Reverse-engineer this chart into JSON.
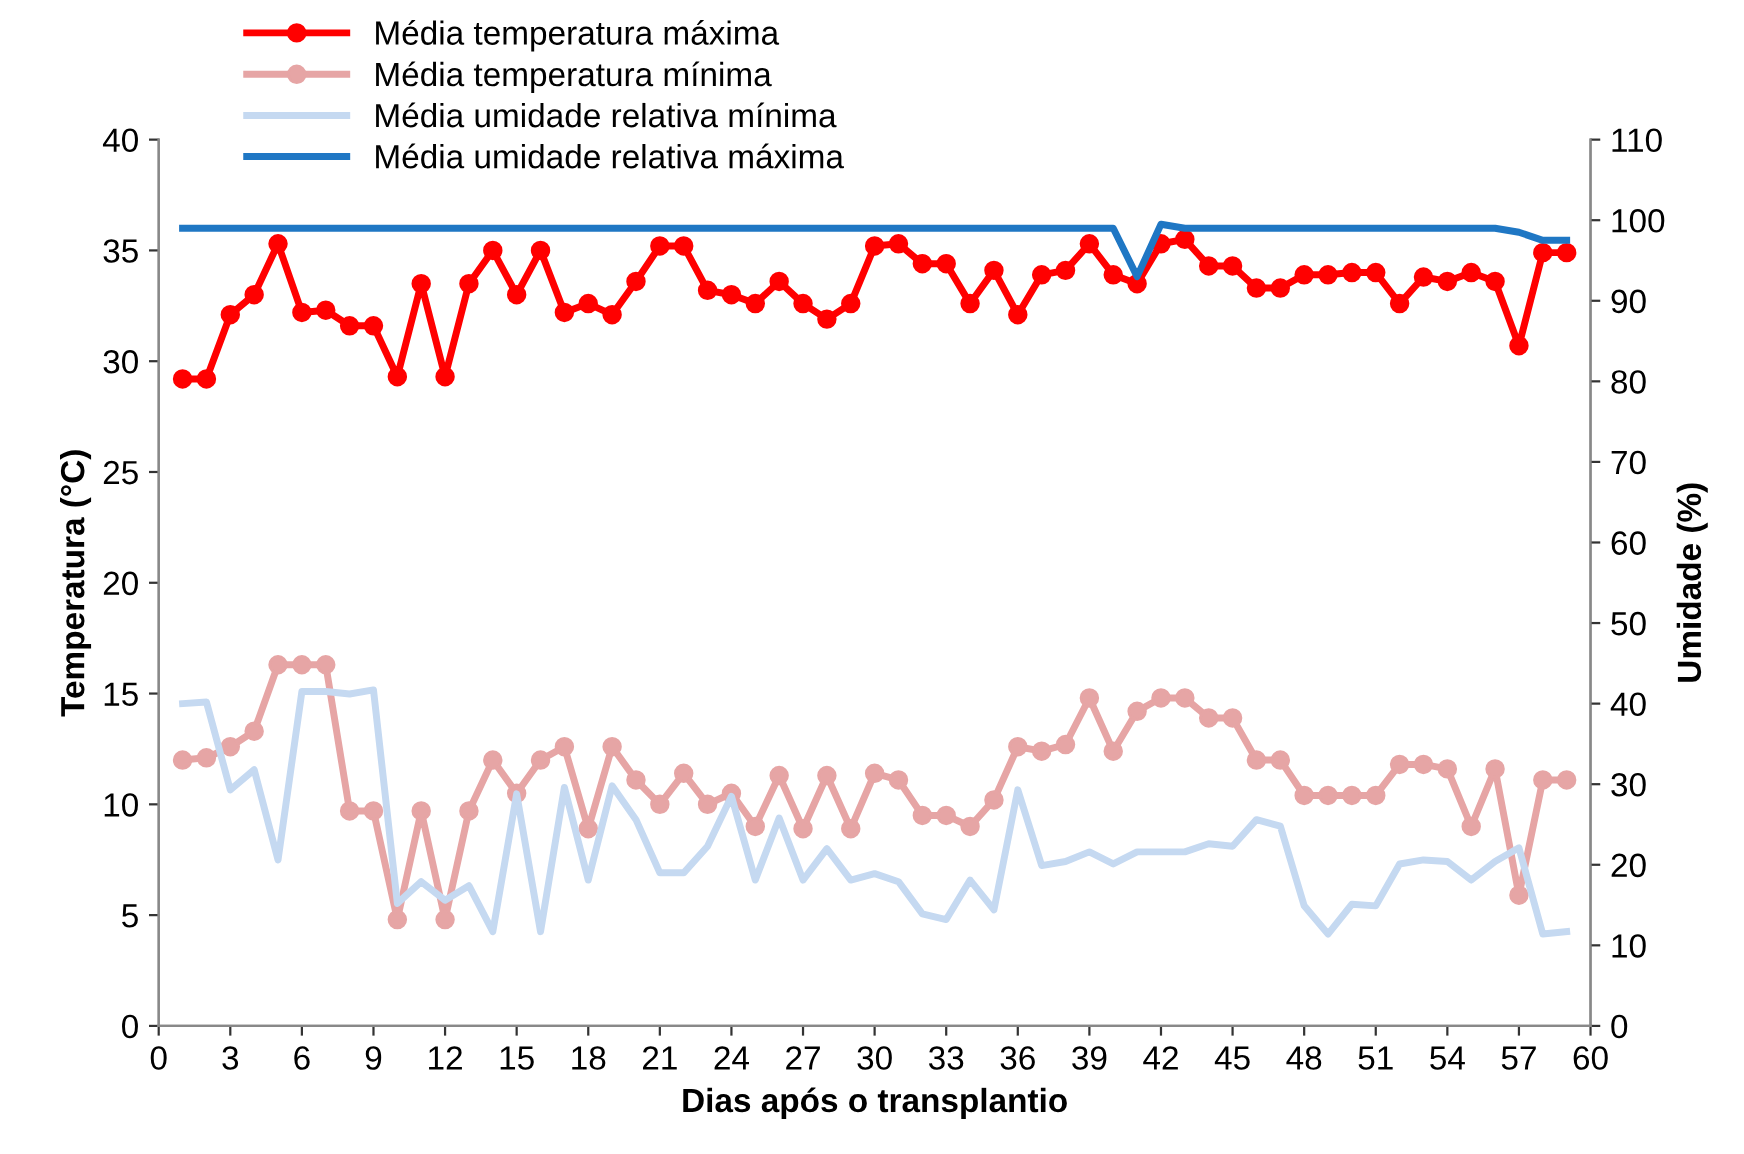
{
  "chart_data": {
    "type": "line",
    "xlabel": "Dias após o transplantio",
    "ylabel": "Temperatura (°C)",
    "y2label": "Umidade (%)",
    "x": [
      1,
      2,
      3,
      4,
      5,
      6,
      7,
      8,
      9,
      10,
      11,
      12,
      13,
      14,
      15,
      16,
      17,
      18,
      19,
      20,
      21,
      22,
      23,
      24,
      25,
      26,
      27,
      28,
      29,
      30,
      31,
      32,
      33,
      34,
      35,
      36,
      37,
      38,
      39,
      40,
      41,
      42,
      43,
      44,
      45,
      46,
      47,
      48,
      49,
      50,
      51,
      52,
      53,
      54,
      55,
      56,
      57,
      58,
      59
    ],
    "xlim": [
      0,
      60
    ],
    "xticks": [
      0,
      3,
      6,
      9,
      12,
      15,
      18,
      21,
      24,
      27,
      30,
      33,
      36,
      39,
      42,
      45,
      48,
      51,
      54,
      57,
      60
    ],
    "ylim": [
      0,
      40
    ],
    "yticks": [
      0,
      5,
      10,
      15,
      20,
      25,
      30,
      35,
      40
    ],
    "y2lim": [
      0,
      110
    ],
    "y2ticks": [
      0,
      10,
      20,
      30,
      40,
      50,
      60,
      70,
      80,
      90,
      100,
      110
    ],
    "grid": false,
    "legend": "top left",
    "series": [
      {
        "name": "Média temperatura máxima",
        "color": "#ff0000",
        "marker": "circle",
        "values": [
          29.2,
          29.2,
          32.1,
          33.0,
          35.3,
          32.2,
          32.3,
          31.6,
          31.6,
          29.3,
          33.5,
          29.3,
          33.5,
          35.0,
          33.0,
          35.0,
          32.2,
          32.6,
          32.1,
          33.6,
          35.2,
          35.2,
          33.2,
          33.0,
          32.6,
          33.6,
          32.6,
          31.9,
          32.6,
          35.2,
          35.3,
          34.4,
          34.4,
          32.6,
          34.1,
          32.1,
          33.9,
          34.1,
          35.3,
          33.9,
          33.5,
          35.3,
          35.5,
          34.3,
          34.3,
          33.3,
          33.3,
          33.9,
          33.9,
          34.0,
          34.0,
          32.6,
          33.8,
          33.6,
          34.0,
          33.6,
          30.7,
          34.9,
          34.9
        ]
      },
      {
        "name": "Média temperatura mínima",
        "color": "#e6a5a5",
        "marker": "circle",
        "values": [
          12.0,
          12.1,
          12.6,
          13.3,
          16.3,
          16.3,
          16.3,
          9.7,
          9.7,
          4.8,
          9.7,
          4.8,
          9.7,
          12.0,
          10.5,
          12.0,
          12.6,
          8.9,
          12.6,
          11.1,
          10.0,
          11.4,
          10.0,
          10.5,
          9.0,
          11.3,
          8.9,
          11.3,
          8.9,
          11.4,
          11.1,
          9.5,
          9.5,
          9.0,
          10.2,
          12.6,
          12.4,
          12.7,
          14.8,
          12.4,
          14.2,
          14.8,
          14.8,
          13.9,
          13.9,
          12.0,
          12.0,
          10.4,
          10.4,
          10.4,
          10.4,
          11.8,
          11.8,
          11.6,
          9.0,
          11.6,
          5.9,
          11.1,
          11.1
        ]
      },
      {
        "name": "Média umidade relativa mínima",
        "color": "#c5d9f1",
        "axis": "y2",
        "marker": "none",
        "values": [
          40,
          40.2,
          29.3,
          31.8,
          20.6,
          41.5,
          41.5,
          41.2,
          41.7,
          15.2,
          17.9,
          15.6,
          17.4,
          11.7,
          28.8,
          11.7,
          29.6,
          18.1,
          29.8,
          25.6,
          19,
          19,
          22.3,
          28.5,
          18.1,
          25.8,
          18.1,
          22,
          18.1,
          18.9,
          17.9,
          13.9,
          13.2,
          18.1,
          14.4,
          29.3,
          19.9,
          20.4,
          21.6,
          20.1,
          21.6,
          21.6,
          21.6,
          22.6,
          22.3,
          25.6,
          24.8,
          14.9,
          11.4,
          15.1,
          14.9,
          20.1,
          20.6,
          20.4,
          18.1,
          20.4,
          22.1,
          11.4,
          11.7
        ]
      },
      {
        "name": "Média umidade relativa máxima",
        "color": "#1f77c4",
        "axis": "y2",
        "marker": "none",
        "values": [
          99,
          99,
          99,
          99,
          99,
          99,
          99,
          99,
          99,
          99,
          99,
          99,
          99,
          99,
          99,
          99,
          99,
          99,
          99,
          99,
          99,
          99,
          99,
          99,
          99,
          99,
          99,
          99,
          99,
          99,
          99,
          99,
          99,
          99,
          99,
          99,
          99,
          99,
          99,
          99,
          93,
          99.5,
          99,
          99,
          99,
          99,
          99,
          99,
          99,
          99,
          99,
          99,
          99,
          99,
          99,
          99,
          98.5,
          97.5,
          97.5
        ]
      }
    ]
  }
}
